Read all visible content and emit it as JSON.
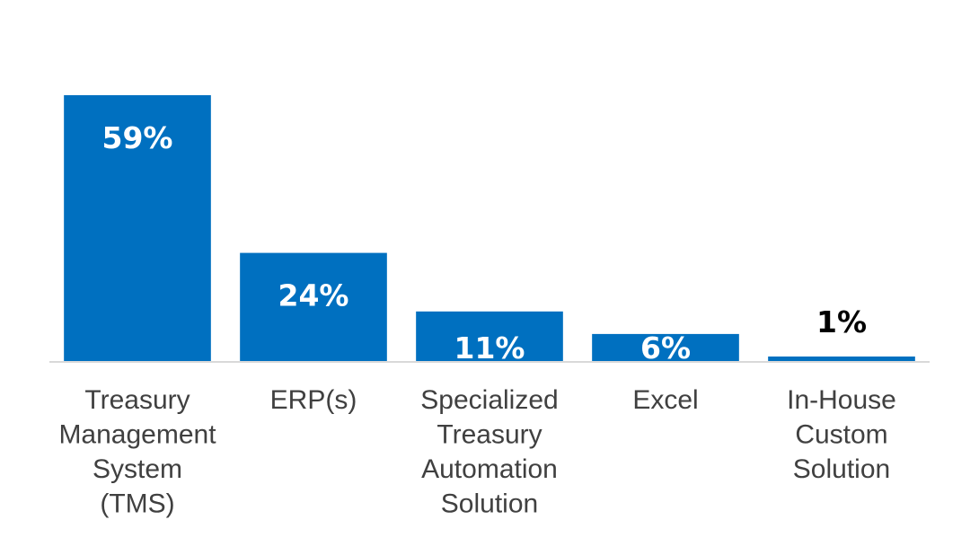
{
  "chart_data": {
    "type": "bar",
    "title": "",
    "xlabel": "",
    "ylabel": "",
    "ylim": [
      0,
      59
    ],
    "grid": false,
    "legend": "none",
    "categories": [
      [
        "Treasury",
        "Management",
        "System",
        "(TMS)"
      ],
      [
        "ERP(s)"
      ],
      [
        "Specialized",
        "Treasury",
        "Automation",
        "Solution"
      ],
      [
        "Excel"
      ],
      [
        "In-House",
        "Custom",
        "Solution"
      ]
    ],
    "values": [
      59,
      24,
      11,
      6,
      1
    ],
    "data_labels": [
      "59%",
      "24%",
      "11%",
      "6%",
      "1%"
    ],
    "label_colors": [
      "#ffffff",
      "#ffffff",
      "#ffffff",
      "#ffffff",
      "#000000"
    ]
  },
  "colors": {
    "bar": "#0070c0",
    "axis": "#d9d9d9",
    "category_text": "#404040"
  }
}
